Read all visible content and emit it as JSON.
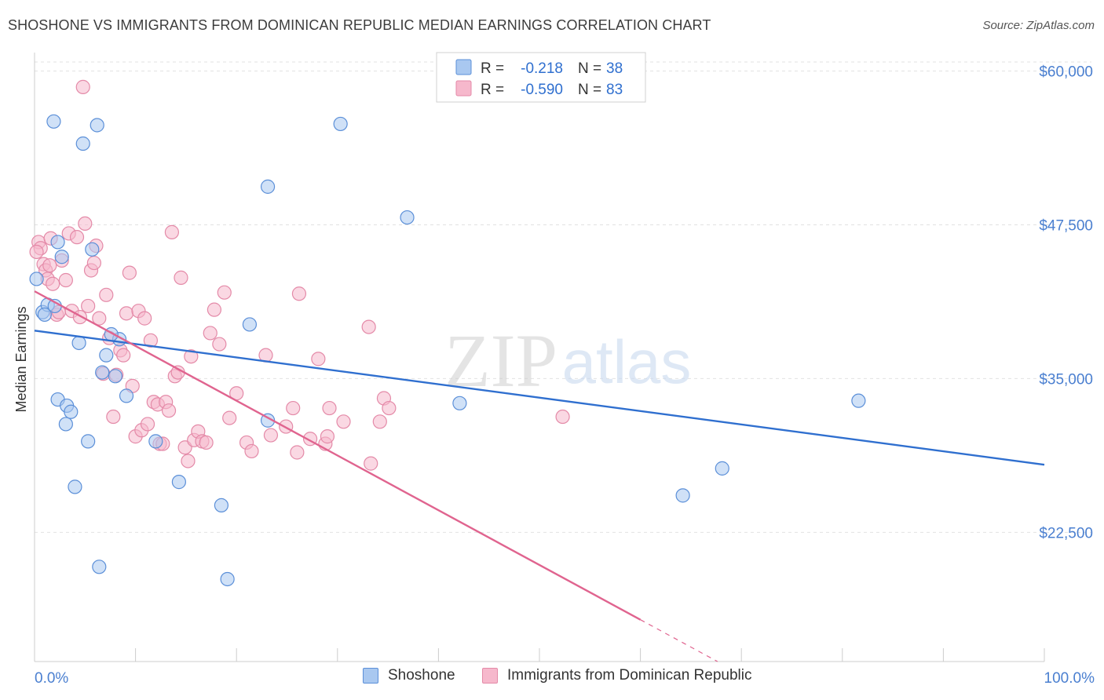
{
  "title": "SHOSHONE VS IMMIGRANTS FROM DOMINICAN REPUBLIC MEDIAN EARNINGS CORRELATION CHART",
  "source": "Source: ZipAtlas.com",
  "watermark": {
    "zip": "ZIP",
    "atlas": "atlas"
  },
  "colors": {
    "blue_fill": "#a9c8f0",
    "blue_stroke": "#5b8fd8",
    "blue_line": "#2f6fcf",
    "pink_fill": "#f6b8cc",
    "pink_stroke": "#e48aa8",
    "pink_line": "#e0648f",
    "axis_label": "#4a7fd0",
    "grid": "#e2e2e2"
  },
  "legend": {
    "rows": [
      {
        "r_label": "R =",
        "r_value": "-0.218",
        "n_label": "N =",
        "n_value": "38"
      },
      {
        "r_label": "R =",
        "r_value": "-0.590",
        "n_label": "N =",
        "n_value": "83"
      }
    ]
  },
  "chart_data": {
    "type": "scatter",
    "xlabel": "",
    "ylabel": "Median Earnings",
    "xlim": [
      0,
      100
    ],
    "ylim": [
      12000,
      61500
    ],
    "x_tick_labels": [
      "0.0%",
      "100.0%"
    ],
    "y_ticks": [
      22500,
      35000,
      47500,
      60000
    ],
    "y_tick_labels": [
      "$22,500",
      "$35,000",
      "$47,500",
      "$60,000"
    ],
    "grid": true,
    "legend_position": "top-center",
    "series": [
      {
        "name": "Shoshone",
        "color": "blue",
        "trend": {
          "x": [
            0,
            100
          ],
          "y": [
            38900,
            28000
          ],
          "solid_until": 100
        },
        "points": [
          [
            0.2,
            43100
          ],
          [
            0.8,
            40400
          ],
          [
            1.3,
            41000
          ],
          [
            1.9,
            55900
          ],
          [
            2.3,
            46100
          ],
          [
            2.7,
            44900
          ],
          [
            2.3,
            33300
          ],
          [
            3.2,
            32800
          ],
          [
            3.1,
            31300
          ],
          [
            3.6,
            32300
          ],
          [
            4.0,
            26200
          ],
          [
            4.4,
            37900
          ],
          [
            4.8,
            54100
          ],
          [
            5.3,
            29900
          ],
          [
            5.7,
            45500
          ],
          [
            6.2,
            55600
          ],
          [
            6.4,
            19700
          ],
          [
            6.7,
            35500
          ],
          [
            7.1,
            36900
          ],
          [
            8.0,
            35200
          ],
          [
            8.4,
            38200
          ],
          [
            9.1,
            33600
          ],
          [
            12.0,
            29900
          ],
          [
            14.3,
            26600
          ],
          [
            18.5,
            24700
          ],
          [
            19.1,
            18700
          ],
          [
            21.3,
            39400
          ],
          [
            23.1,
            50600
          ],
          [
            23.1,
            31600
          ],
          [
            30.3,
            55700
          ],
          [
            36.9,
            48100
          ],
          [
            42.1,
            33000
          ],
          [
            64.2,
            25500
          ],
          [
            68.1,
            27700
          ],
          [
            81.6,
            33200
          ],
          [
            1.0,
            40200
          ],
          [
            2.0,
            40900
          ],
          [
            7.6,
            38600
          ]
        ]
      },
      {
        "name": "Immigrants from Dominican Republic",
        "color": "pink",
        "trend": {
          "x": [
            0,
            100
          ],
          "y": [
            42100,
            -2400
          ],
          "solid_until": 60
        },
        "points": [
          [
            0.4,
            46100
          ],
          [
            0.6,
            45600
          ],
          [
            0.9,
            44300
          ],
          [
            1.1,
            43800
          ],
          [
            1.3,
            43100
          ],
          [
            1.6,
            46400
          ],
          [
            1.8,
            42700
          ],
          [
            2.2,
            40200
          ],
          [
            2.4,
            40400
          ],
          [
            2.7,
            44600
          ],
          [
            3.1,
            43000
          ],
          [
            3.4,
            46800
          ],
          [
            3.7,
            40500
          ],
          [
            4.2,
            46500
          ],
          [
            4.5,
            40000
          ],
          [
            4.8,
            58700
          ],
          [
            5.0,
            47600
          ],
          [
            5.3,
            40900
          ],
          [
            5.6,
            43800
          ],
          [
            5.9,
            44400
          ],
          [
            6.1,
            45800
          ],
          [
            6.4,
            39900
          ],
          [
            6.8,
            35400
          ],
          [
            7.1,
            41800
          ],
          [
            7.4,
            38300
          ],
          [
            7.8,
            31900
          ],
          [
            8.1,
            35300
          ],
          [
            8.5,
            37300
          ],
          [
            8.8,
            36900
          ],
          [
            9.1,
            40300
          ],
          [
            9.4,
            43600
          ],
          [
            9.7,
            34400
          ],
          [
            10.0,
            30300
          ],
          [
            10.3,
            40500
          ],
          [
            10.6,
            30800
          ],
          [
            10.9,
            39900
          ],
          [
            11.2,
            31300
          ],
          [
            11.5,
            38100
          ],
          [
            11.8,
            33100
          ],
          [
            12.2,
            32900
          ],
          [
            12.4,
            29700
          ],
          [
            12.7,
            29700
          ],
          [
            13.0,
            33100
          ],
          [
            13.3,
            32400
          ],
          [
            13.6,
            46900
          ],
          [
            13.9,
            35200
          ],
          [
            14.2,
            35500
          ],
          [
            14.5,
            43200
          ],
          [
            14.9,
            29400
          ],
          [
            15.2,
            28300
          ],
          [
            15.5,
            36800
          ],
          [
            15.8,
            30000
          ],
          [
            16.2,
            30700
          ],
          [
            16.6,
            29900
          ],
          [
            17.0,
            29800
          ],
          [
            17.4,
            38700
          ],
          [
            17.8,
            40600
          ],
          [
            18.3,
            37800
          ],
          [
            18.8,
            42000
          ],
          [
            19.3,
            31800
          ],
          [
            20.0,
            33800
          ],
          [
            21.0,
            29800
          ],
          [
            21.5,
            29100
          ],
          [
            22.9,
            36900
          ],
          [
            23.4,
            30400
          ],
          [
            24.9,
            31100
          ],
          [
            25.6,
            32600
          ],
          [
            26.0,
            29000
          ],
          [
            26.2,
            41900
          ],
          [
            27.3,
            30100
          ],
          [
            28.1,
            36600
          ],
          [
            28.8,
            29700
          ],
          [
            29.0,
            30300
          ],
          [
            29.2,
            32600
          ],
          [
            30.6,
            31500
          ],
          [
            33.1,
            39200
          ],
          [
            33.3,
            28100
          ],
          [
            34.2,
            31500
          ],
          [
            34.6,
            33400
          ],
          [
            35.1,
            32600
          ],
          [
            52.3,
            31900
          ],
          [
            0.2,
            45300
          ],
          [
            1.5,
            44200
          ]
        ]
      }
    ]
  }
}
